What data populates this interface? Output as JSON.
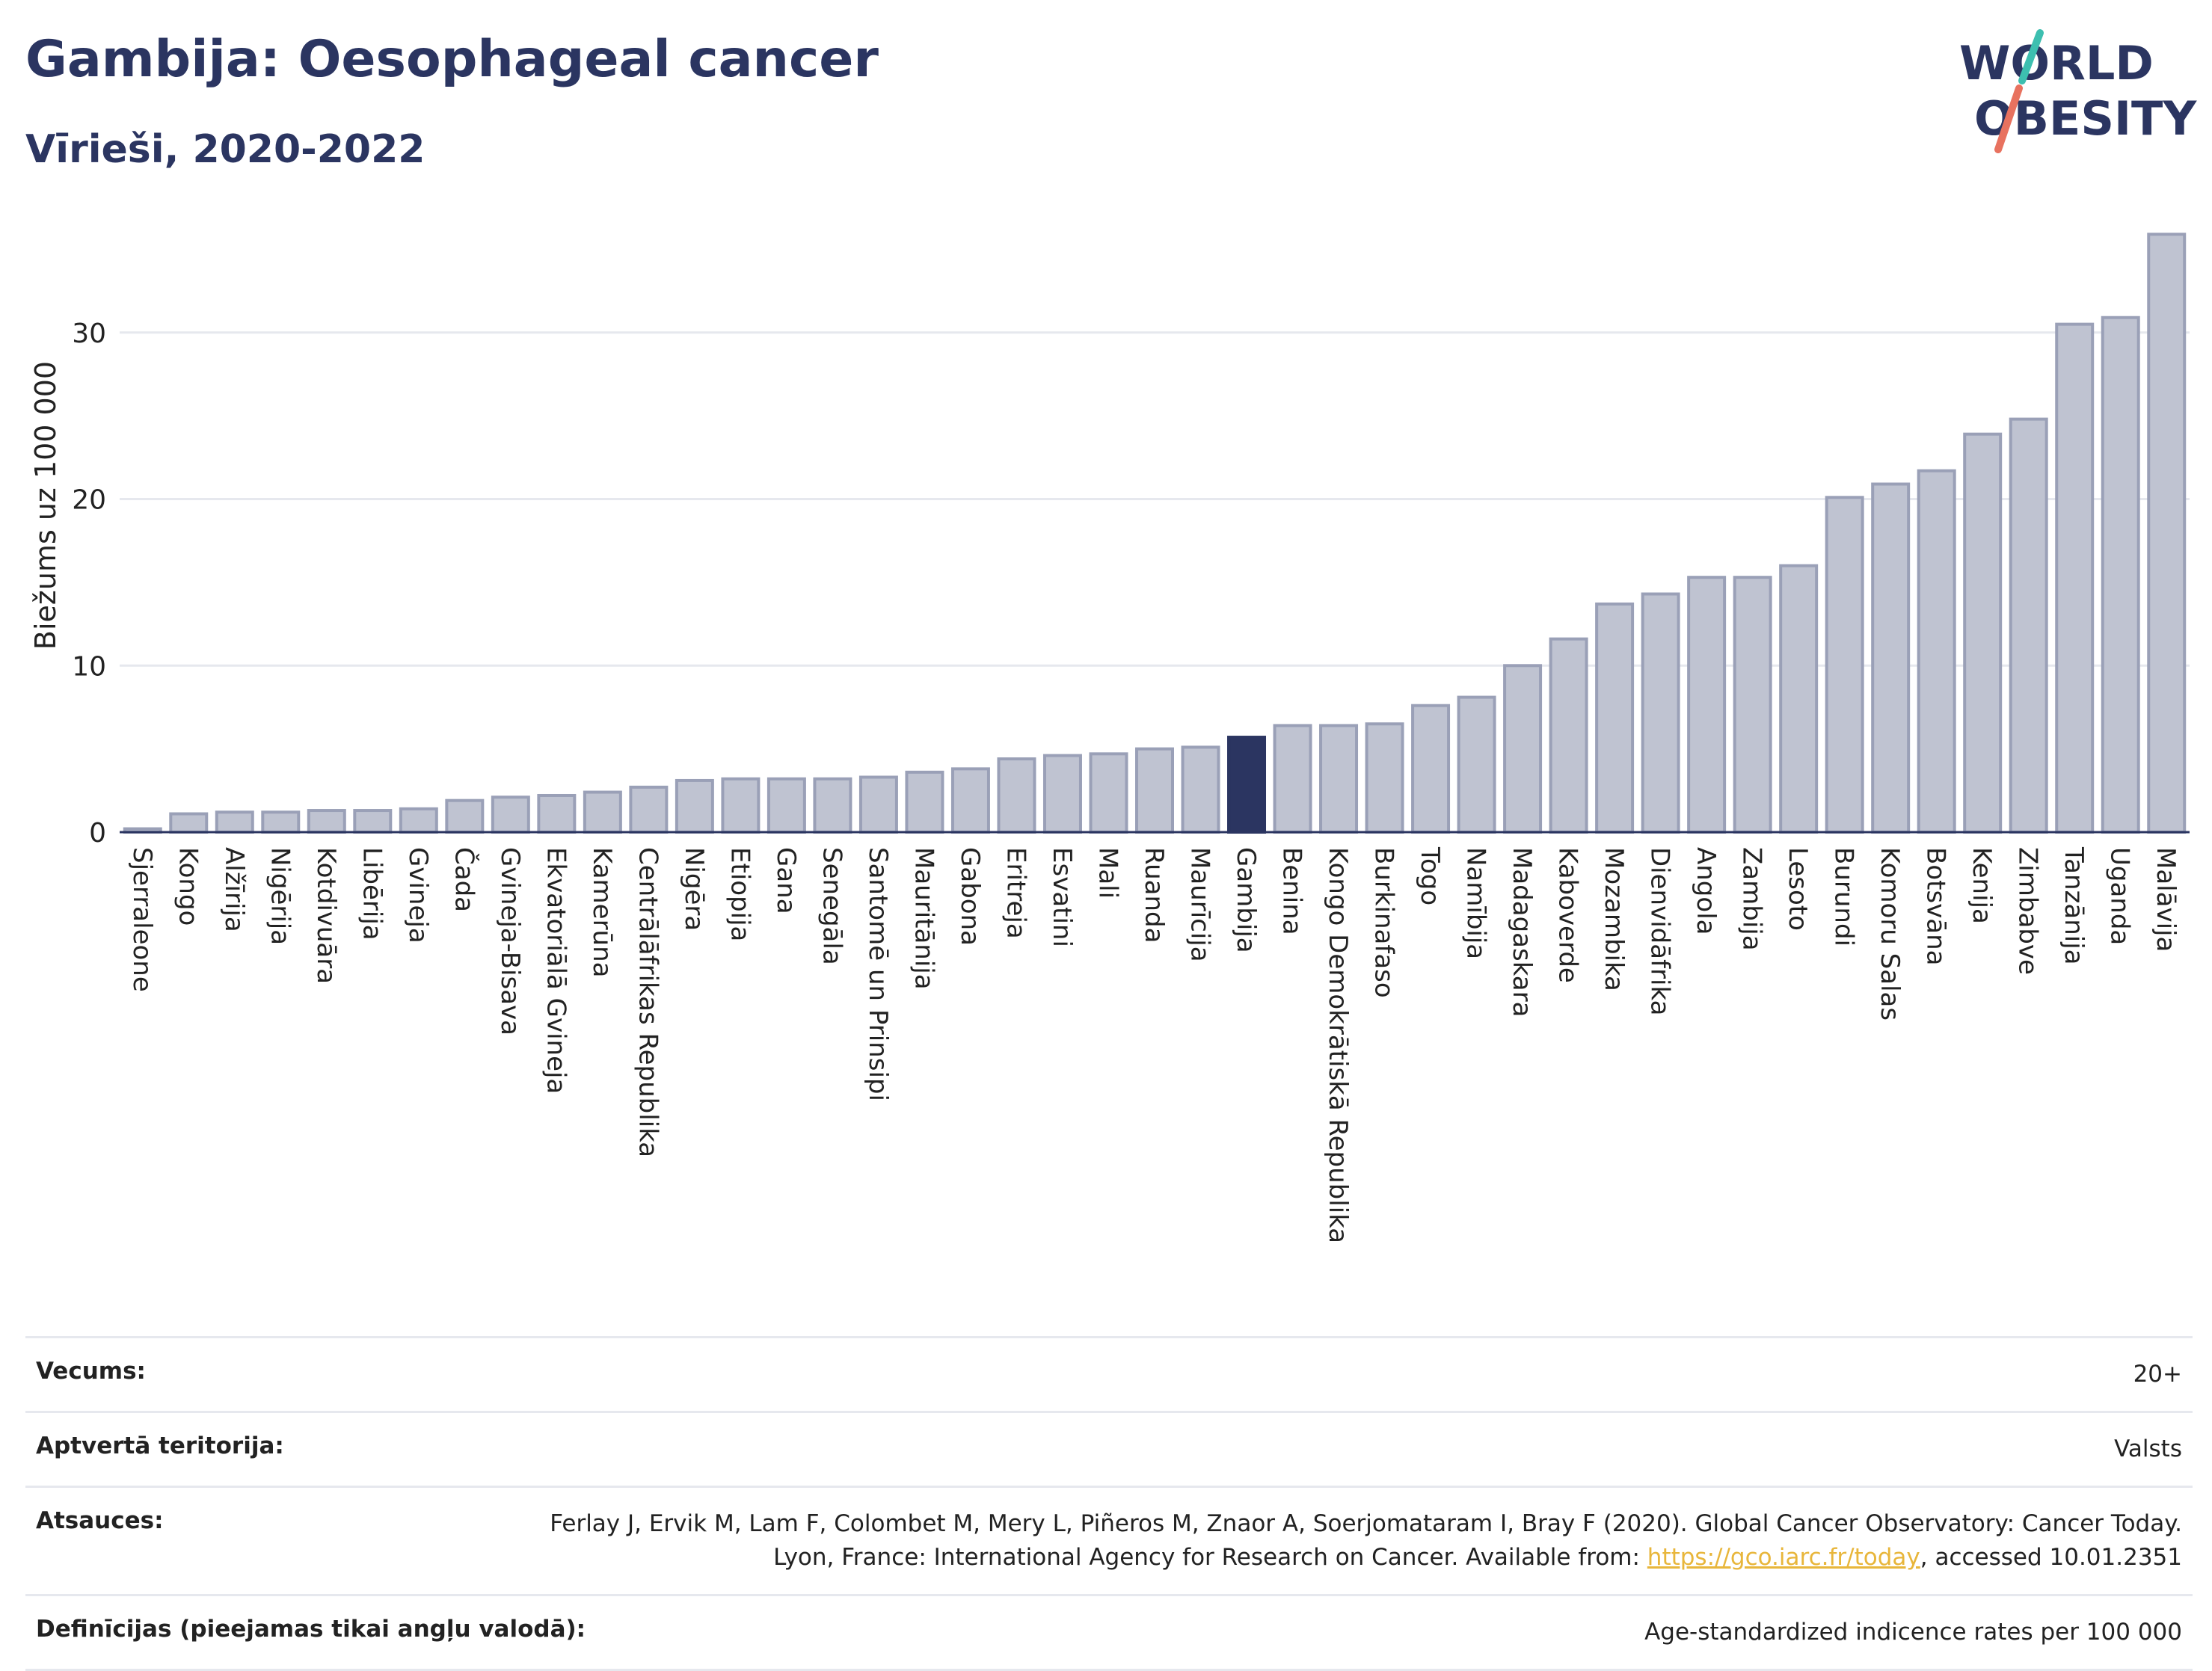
{
  "header": {
    "title": "Gambija: Oesophageal cancer",
    "subtitle": "Vīrieši, 2020-2022"
  },
  "logo": {
    "line1": "WORLD",
    "line2": "OBESITY",
    "colors": {
      "text": "#2b3561",
      "slash_top": "#3dbfb0",
      "slash_bottom": "#e8725f"
    }
  },
  "chart_data": {
    "type": "bar",
    "ylabel": "Biežums uz 100 000",
    "xlabel": "",
    "ylim": [
      0,
      36.5
    ],
    "yticks": [
      0,
      10,
      20,
      30
    ],
    "grid": true,
    "highlight": "Gambija",
    "colors": {
      "bar": "#bfc3d1",
      "bar_stroke": "#9aa0b7",
      "highlight": "#2b3561"
    },
    "categories": [
      "Sjerraleone",
      "Kongo",
      "Alžīrija",
      "Nigērija",
      "Kotdivuāra",
      "Libērija",
      "Gvineja",
      "Čada",
      "Gvineja-Bisava",
      "Ekvatoriālā Gvineja",
      "Kamerūna",
      "Centrālāfrikas Republika",
      "Nigēra",
      "Etiopija",
      "Gana",
      "Senegāla",
      "Santomē un Prinsipi",
      "Mauritānija",
      "Gabona",
      "Eritreja",
      "Esvatini",
      "Mali",
      "Ruanda",
      "Maurīcija",
      "Gambija",
      "Benina",
      "Kongo Demokrātiskā Republika",
      "Burkinafaso",
      "Togo",
      "Namībija",
      "Madagaskara",
      "Kaboverde",
      "Mozambika",
      "Dienvidāfrika",
      "Angola",
      "Zambija",
      "Lesoto",
      "Burundi",
      "Komoru Salas",
      "Botsvāna",
      "Kenija",
      "Zimbabve",
      "Tanzānija",
      "Uganda",
      "Malāvija"
    ],
    "values": [
      0.2,
      1.1,
      1.2,
      1.2,
      1.3,
      1.3,
      1.4,
      1.9,
      2.1,
      2.2,
      2.4,
      2.7,
      3.1,
      3.2,
      3.2,
      3.2,
      3.3,
      3.6,
      3.8,
      4.4,
      4.6,
      4.7,
      5.0,
      5.1,
      5.7,
      6.4,
      6.4,
      6.5,
      7.6,
      8.1,
      10.0,
      11.6,
      13.7,
      14.3,
      15.3,
      15.3,
      16.0,
      20.1,
      20.9,
      21.7,
      23.9,
      24.8,
      30.5,
      30.9,
      35.9
    ]
  },
  "meta": [
    {
      "key": "Vecums:",
      "value": "20+"
    },
    {
      "key": "Aptvertā teritorija:",
      "value": "Valsts"
    },
    {
      "key": "Atsauces:",
      "value_before": "Ferlay J, Ervik M, Lam F, Colombet M, Mery L, Piñeros M, Znaor A, Soerjomataram I, Bray F (2020). Global Cancer Observatory: Cancer Today. Lyon, France: International Agency for Research on Cancer. Available from: ",
      "link": "https://gco.iarc.fr/today",
      "value_after": ", accessed 10.01.2351"
    },
    {
      "key": "Definīcijas (pieejamas tikai angļu valodā):",
      "value": "Age-standardized indicence rates per 100 000"
    }
  ]
}
